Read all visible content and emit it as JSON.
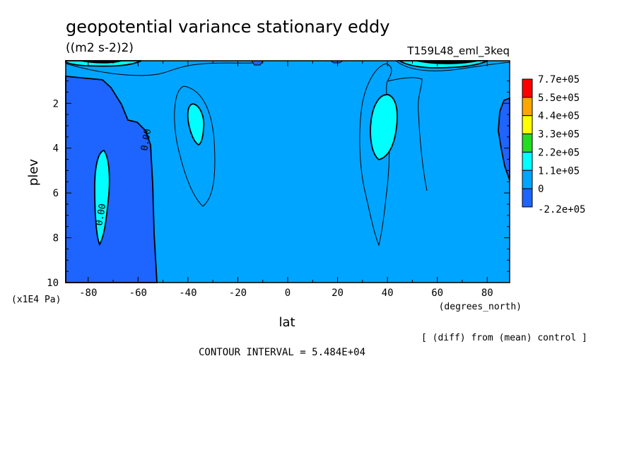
{
  "chart_data": {
    "type": "contour",
    "title": "geopotential variance stationary eddy",
    "units": "((m2 s-2)2)",
    "run_label": "T159L48_eml_3keq",
    "xlabel": "lat",
    "xunits": "(degrees_north)",
    "ylabel": "plev",
    "yunits": "(x1E4 Pa)",
    "x_ticks": [
      "-80",
      "-60",
      "-40",
      "-20",
      "0",
      "20",
      "40",
      "60",
      "80"
    ],
    "x_tick_values": [
      -80,
      -60,
      -40,
      -20,
      0,
      20,
      40,
      60,
      80
    ],
    "y_ticks": [
      "2",
      "4",
      "6",
      "8",
      "10"
    ],
    "y_tick_values": [
      2,
      4,
      6,
      8,
      10
    ],
    "xlim": [
      -89,
      89
    ],
    "ylim": [
      10,
      0.1
    ],
    "colorbar_levels": [
      "7.7e+05",
      "5.5e+05",
      "4.4e+05",
      "3.3e+05",
      "2.2e+05",
      "1.1e+05",
      "0",
      "-2.2e+05"
    ],
    "colorbar_colors": [
      "#ff0000",
      "#ffa500",
      "#ffff00",
      "#22dd22",
      "#00ffff",
      "#00a5ff",
      "#1e64ff"
    ],
    "contour_labels": [
      "0.00",
      "0.00"
    ],
    "diff_note": "[ (diff) from (mean) control ]",
    "contour_interval": "CONTOUR INTERVAL = 5.484E+04"
  }
}
